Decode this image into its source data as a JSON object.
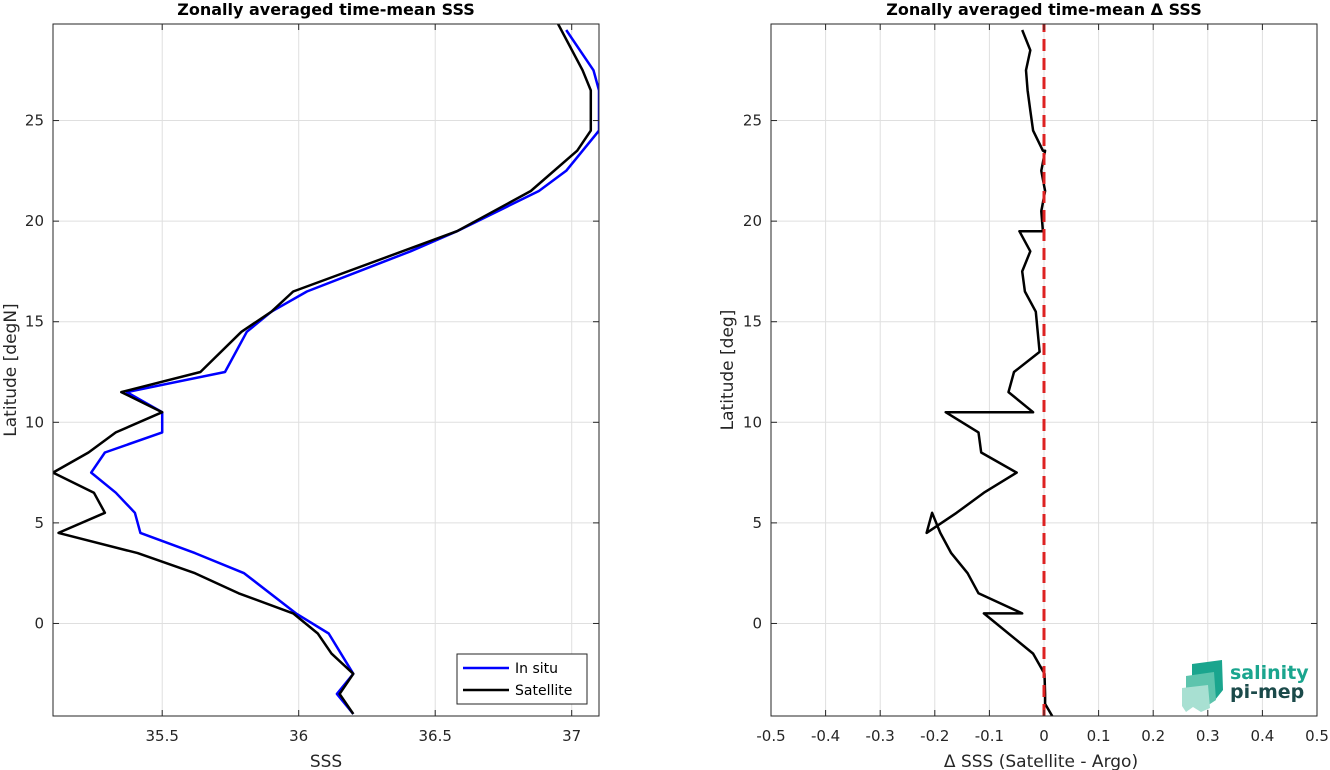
{
  "chart_data": [
    {
      "type": "line",
      "title": "Zonally averaged time-mean SSS",
      "xlabel": "SSS",
      "ylabel": "Latitude [degN]",
      "xlim": [
        35.1,
        37.1
      ],
      "ylim": [
        -4.6,
        29.8
      ],
      "xticks": [
        35.5,
        36,
        36.5,
        37
      ],
      "xtick_labels": [
        "35.5",
        "36",
        "36.5",
        "37"
      ],
      "yticks": [
        0,
        5,
        10,
        15,
        20,
        25
      ],
      "ytick_labels": [
        "0",
        "5",
        "10",
        "15",
        "20",
        "25"
      ],
      "grid": true,
      "legend": "bottom-right",
      "series": [
        {
          "name": "In situ",
          "color": "#0000ff",
          "x": [
            36.2,
            36.14,
            36.2,
            36.11,
            35.99,
            35.8,
            35.62,
            35.42,
            35.4,
            35.33,
            35.24,
            35.29,
            35.5,
            35.5,
            35.37,
            35.73,
            35.81,
            35.9,
            36.03,
            36.41,
            36.58,
            36.88,
            36.98,
            37.1,
            37.1,
            37.1,
            37.08,
            36.98
          ],
          "y": [
            -4.5,
            -3.5,
            -2.5,
            -0.5,
            0.5,
            2.5,
            3.5,
            4.5,
            5.5,
            6.5,
            7.5,
            8.5,
            9.5,
            10.5,
            11.5,
            12.5,
            14.5,
            15.5,
            16.5,
            18.5,
            19.5,
            21.5,
            22.5,
            24.5,
            25.5,
            26.5,
            27.5,
            29.5
          ]
        },
        {
          "name": "Satellite",
          "color": "#000000",
          "x": [
            36.2,
            36.15,
            36.2,
            36.12,
            36.07,
            35.98,
            35.78,
            35.62,
            35.41,
            35.12,
            35.29,
            35.25,
            35.1,
            35.23,
            35.33,
            35.5,
            35.35,
            35.64,
            35.79,
            35.9,
            35.98,
            36.58,
            36.85,
            37.02,
            37.07,
            37.07,
            37.04,
            36.95
          ],
          "y": [
            -4.5,
            -3.5,
            -2.5,
            -1.5,
            -0.5,
            0.5,
            1.5,
            2.5,
            3.5,
            4.5,
            5.5,
            6.5,
            7.5,
            8.5,
            9.5,
            10.5,
            11.5,
            12.5,
            14.5,
            15.5,
            16.5,
            19.5,
            21.5,
            23.5,
            24.5,
            26.5,
            27.5,
            29.8
          ]
        }
      ]
    },
    {
      "type": "line",
      "title": "Zonally averaged time-mean Δ SSS",
      "xlabel": "Δ SSS (Satellite - Argo)",
      "ylabel": "Latitude [deg]",
      "xlim": [
        -0.5,
        0.5
      ],
      "ylim": [
        -4.6,
        29.8
      ],
      "xticks": [
        -0.5,
        -0.4,
        -0.3,
        -0.2,
        -0.1,
        0,
        0.1,
        0.2,
        0.3,
        0.4,
        0.5
      ],
      "xtick_labels": [
        "-0.5",
        "-0.4",
        "-0.3",
        "-0.2",
        "-0.1",
        "0",
        "0.1",
        "0.2",
        "0.3",
        "0.4",
        "0.5"
      ],
      "yticks": [
        0,
        5,
        10,
        15,
        20,
        25
      ],
      "ytick_labels": [
        "0",
        "5",
        "10",
        "15",
        "20",
        "25"
      ],
      "grid": true,
      "series": [
        {
          "color": "#000000",
          "x": [
            0.015,
            0.002,
            0.002,
            0.001,
            -0.02,
            -0.11,
            -0.04,
            -0.12,
            -0.14,
            -0.17,
            -0.19,
            -0.205,
            -0.215,
            -0.16,
            -0.11,
            -0.05,
            -0.115,
            -0.12,
            -0.18,
            -0.02,
            -0.065,
            -0.055,
            -0.008,
            -0.015,
            -0.035,
            -0.04,
            -0.025,
            -0.045,
            -0.042,
            -0.002,
            -0.005,
            0.002,
            -0.005,
            0.002,
            -0.002,
            -0.02,
            -0.025,
            -0.03,
            -0.033,
            -0.025,
            -0.04
          ],
          "y": [
            -4.6,
            -4.0,
            -3.5,
            -2.5,
            -1.5,
            0.5,
            0.5,
            1.5,
            2.5,
            3.5,
            4.5,
            5.5,
            4.5,
            5.5,
            6.5,
            7.5,
            8.5,
            9.5,
            10.5,
            10.5,
            11.5,
            12.5,
            13.5,
            15.5,
            16.5,
            17.5,
            18.5,
            19.5,
            19.5,
            19.5,
            20.5,
            21.5,
            22.5,
            23.5,
            23.5,
            24.5,
            25.5,
            26.5,
            27.5,
            28.5,
            29.5
          ]
        },
        {
          "color": "#dd2222",
          "style": "dashed",
          "x": [
            0,
            0
          ],
          "y": [
            -4.6,
            29.8
          ]
        }
      ]
    }
  ],
  "logo": {
    "line1": "salinity",
    "line2": "pi-mep",
    "color": "#1aa58e"
  }
}
